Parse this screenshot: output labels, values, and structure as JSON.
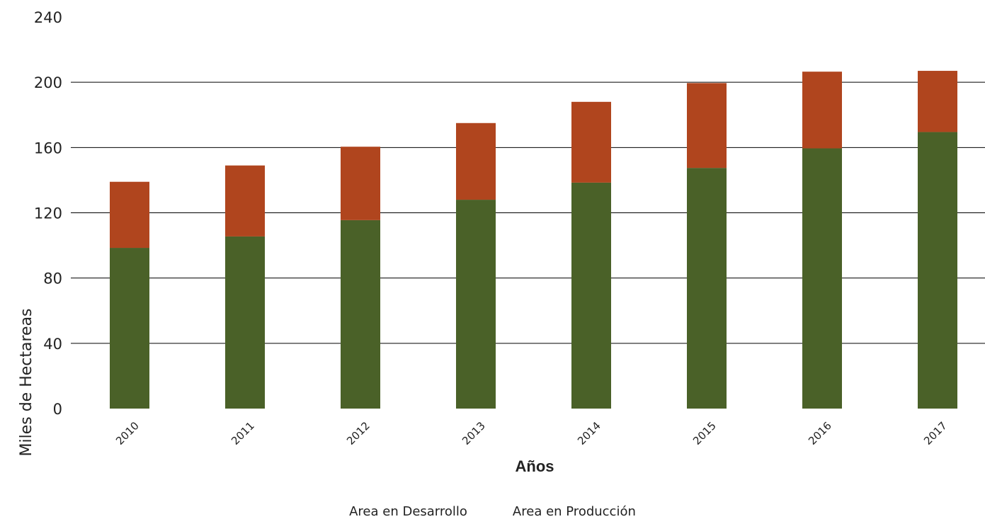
{
  "chart_data": {
    "type": "bar",
    "stacked": true,
    "categories": [
      "2010",
      "2011",
      "2012",
      "2013",
      "2014",
      "2015",
      "2016",
      "2017"
    ],
    "series": [
      {
        "name": "Area en Producción",
        "color": "#4a6128",
        "values": [
          98.5,
          105.5,
          115.5,
          128,
          138.5,
          147.5,
          159.5,
          169.5
        ]
      },
      {
        "name": "Area en Desarrollo",
        "color": "#b0451e",
        "values": [
          40.5,
          43.5,
          45,
          47,
          49.5,
          52,
          47,
          37.5
        ]
      }
    ],
    "xlabel": "Años",
    "ylabel": "Miles de Hectareas",
    "ylim": [
      0,
      240
    ],
    "yticks": [
      0,
      40,
      80,
      120,
      160,
      200,
      240
    ],
    "grid": true,
    "legend_position": "bottom"
  },
  "legend": {
    "items": [
      "Area en Desarrollo",
      "Area en Producción"
    ]
  }
}
